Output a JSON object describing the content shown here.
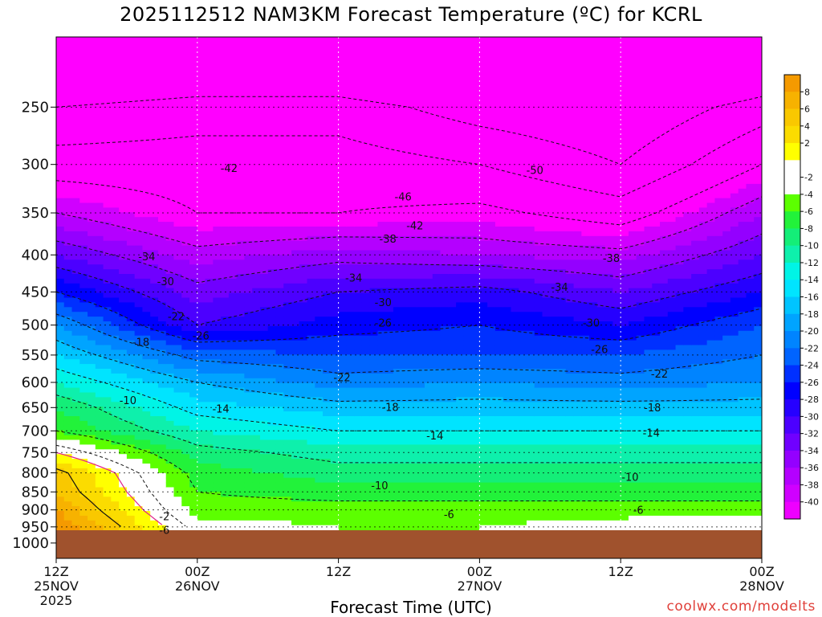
{
  "title": "2025112512 NAM3KM Forecast Temperature (ºC) for KCRL",
  "xaxis_title": "Forecast Time (UTC)",
  "credit": "coolwx.com/modelts",
  "chart_data": {
    "type": "heatmap",
    "title": "2025112512 NAM3KM Forecast Temperature (ºC) for KCRL",
    "xlabel": "Forecast Time (UTC)",
    "ylabel": "",
    "y_scale": "log-pressure",
    "y_inverted": true,
    "ylim": [
      200,
      1050
    ],
    "y_ticks": [
      250,
      300,
      350,
      400,
      450,
      500,
      550,
      600,
      650,
      700,
      750,
      800,
      850,
      900,
      950,
      1000
    ],
    "x_hours_range": [
      0,
      60
    ],
    "x_ticks": [
      {
        "hour": 0,
        "lines": [
          "12Z",
          "25NOV",
          "2025"
        ]
      },
      {
        "hour": 12,
        "lines": [
          "00Z",
          "26NOV"
        ]
      },
      {
        "hour": 24,
        "lines": [
          "12Z"
        ]
      },
      {
        "hour": 36,
        "lines": [
          "00Z",
          "27NOV"
        ]
      },
      {
        "hour": 48,
        "lines": [
          "12Z"
        ]
      },
      {
        "hour": 60,
        "lines": [
          "00Z",
          "28NOV"
        ]
      }
    ],
    "grid": true,
    "colorbar": {
      "units": "ºC",
      "levels": [
        {
          "label": "",
          "color": "#f59a00"
        },
        {
          "label": "8",
          "color": "#f7b200"
        },
        {
          "label": "6",
          "color": "#f9c800"
        },
        {
          "label": "4",
          "color": "#fbdc00"
        },
        {
          "label": "2",
          "color": "#ffff00"
        },
        {
          "label": "",
          "color": "#ffffff"
        },
        {
          "label": "-2",
          "color": "#ffffff"
        },
        {
          "label": "-4",
          "color": "#5cff00"
        },
        {
          "label": "-6",
          "color": "#22f23a"
        },
        {
          "label": "-8",
          "color": "#14ee78"
        },
        {
          "label": "-10",
          "color": "#0ef0ac"
        },
        {
          "label": "-12",
          "color": "#00f4e6"
        },
        {
          "label": "-14",
          "color": "#00e4ff"
        },
        {
          "label": "-16",
          "color": "#00c4ff"
        },
        {
          "label": "-18",
          "color": "#00a4ff"
        },
        {
          "label": "-20",
          "color": "#0084ff"
        },
        {
          "label": "-22",
          "color": "#0064ff"
        },
        {
          "label": "-24",
          "color": "#0030ff"
        },
        {
          "label": "-26",
          "color": "#0000ff"
        },
        {
          "label": "-28",
          "color": "#2600ff"
        },
        {
          "label": "-30",
          "color": "#4c00ff"
        },
        {
          "label": "-32",
          "color": "#7000ff"
        },
        {
          "label": "-34",
          "color": "#9400ff"
        },
        {
          "label": "-36",
          "color": "#b400ff"
        },
        {
          "label": "-38",
          "color": "#d000ff"
        },
        {
          "label": "-40",
          "color": "#ee00ff"
        }
      ],
      "below_min_color": "#ff00ff",
      "terrain_color": "#a0522d"
    },
    "profiles": [
      {
        "hour": 0,
        "levels": {
          "1000": "ground",
          "950": 10,
          "900": 8,
          "850": 6,
          "800": 5,
          "750": 0,
          "700": -6,
          "650": -8,
          "600": -12,
          "550": -16,
          "500": -20,
          "450": -26,
          "400": -32,
          "350": -38,
          "300": -44,
          "250": -50
        }
      },
      {
        "hour": 12,
        "levels": {
          "1000": "ground",
          "950": -3,
          "900": -5,
          "850": -6,
          "800": -7,
          "750": -9,
          "700": -12,
          "650": -15,
          "600": -18,
          "550": -23,
          "500": -30,
          "450": -33,
          "400": -37,
          "350": -42,
          "300": -44,
          "250": -48
        }
      },
      {
        "hour": 24,
        "levels": {
          "1000": "ground",
          "950": -4,
          "900": -5,
          "850": -7,
          "800": -9,
          "750": -11,
          "700": -14,
          "650": -17,
          "600": -21,
          "550": -24,
          "500": -27,
          "450": -30,
          "400": -35,
          "350": -42,
          "300": -44,
          "250": -48
        }
      },
      {
        "hour": 36,
        "levels": {
          "1000": "ground",
          "950": -4,
          "900": -5,
          "850": -7,
          "800": -9,
          "750": -11,
          "700": -14,
          "650": -17,
          "600": -20,
          "550": -24,
          "500": -26,
          "450": -29,
          "400": -36,
          "350": -41,
          "300": -46,
          "250": -52
        }
      },
      {
        "hour": 48,
        "levels": {
          "1000": "ground",
          "950": -3,
          "900": -5,
          "850": -7,
          "800": -9,
          "750": -11,
          "700": -14,
          "650": -17,
          "600": -21,
          "550": -24,
          "500": -28,
          "450": -32,
          "400": -37,
          "350": -44,
          "300": -50,
          "250": -54
        }
      },
      {
        "hour": 60,
        "levels": {
          "1000": "ground",
          "950": -2,
          "900": -5,
          "850": -7,
          "800": -9,
          "750": -11,
          "700": -14,
          "650": -17,
          "600": -20,
          "550": -22,
          "500": -24,
          "450": -28,
          "400": -32,
          "350": -36,
          "300": -42,
          "250": -48
        }
      }
    ],
    "contour_labels": [
      {
        "text": "-42",
        "hour": 14.7,
        "p": 304
      },
      {
        "text": "-50",
        "hour": 40.7,
        "p": 306
      },
      {
        "text": "-46",
        "hour": 29.5,
        "p": 333
      },
      {
        "text": "-42",
        "hour": 30.5,
        "p": 365
      },
      {
        "text": "-38",
        "hour": 28.2,
        "p": 381
      },
      {
        "text": "-38",
        "hour": 47.2,
        "p": 405
      },
      {
        "text": "-34",
        "hour": 7.7,
        "p": 403
      },
      {
        "text": "-34",
        "hour": 25.3,
        "p": 431
      },
      {
        "text": "-34",
        "hour": 42.8,
        "p": 444
      },
      {
        "text": "-30",
        "hour": 9.3,
        "p": 436
      },
      {
        "text": "-30",
        "hour": 27.8,
        "p": 466
      },
      {
        "text": "-30",
        "hour": 45.5,
        "p": 497
      },
      {
        "text": "-26",
        "hour": 27.8,
        "p": 497
      },
      {
        "text": "-26",
        "hour": 46.2,
        "p": 541
      },
      {
        "text": "-26",
        "hour": 12.3,
        "p": 518
      },
      {
        "text": "-22",
        "hour": 10.2,
        "p": 487
      },
      {
        "text": "-22",
        "hour": 24.3,
        "p": 592
      },
      {
        "text": "-22",
        "hour": 51.3,
        "p": 585
      },
      {
        "text": "-18",
        "hour": 7.2,
        "p": 529
      },
      {
        "text": "-18",
        "hour": 28.4,
        "p": 650
      },
      {
        "text": "-18",
        "hour": 50.7,
        "p": 651
      },
      {
        "text": "-14",
        "hour": 14.0,
        "p": 654
      },
      {
        "text": "-14",
        "hour": 32.2,
        "p": 712
      },
      {
        "text": "-14",
        "hour": 50.6,
        "p": 706
      },
      {
        "text": "-10",
        "hour": 6.1,
        "p": 636
      },
      {
        "text": "-10",
        "hour": 27.5,
        "p": 834
      },
      {
        "text": "-10",
        "hour": 48.8,
        "p": 812
      },
      {
        "text": "-6",
        "hour": 33.4,
        "p": 915
      },
      {
        "text": "-6",
        "hour": 49.5,
        "p": 902
      },
      {
        "text": "-2",
        "hour": 9.2,
        "p": 920
      },
      {
        "text": "-6",
        "hour": 9.2,
        "p": 962
      }
    ]
  }
}
